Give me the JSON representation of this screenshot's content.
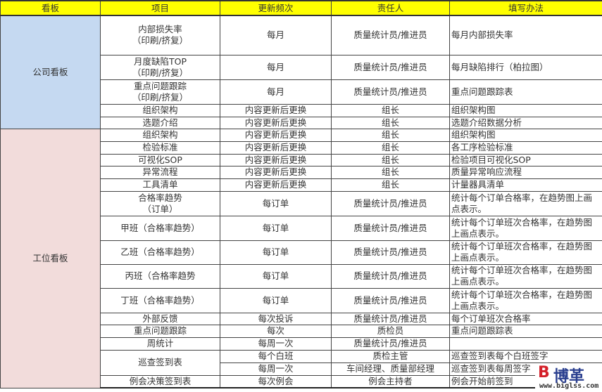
{
  "headers": [
    "看板",
    "项目",
    "更新频次",
    "责任人",
    "填写办法"
  ],
  "colors": {
    "header": "#ffff00",
    "company": "#c5d9f1",
    "station": "#f2dcdb"
  },
  "groups": [
    {
      "label": "公司看板",
      "style": "company",
      "rows": [
        {
          "item": "内部损失率\n（印刷/挤复）",
          "freq": "每月",
          "owner": "质量统计员/推进员",
          "method": "每月内部损失率"
        },
        {
          "item": "月度缺陷TOP\n（印刷/挤复）",
          "freq": "每月",
          "owner": "质量统计员/推进员",
          "method": "每月缺陷排行（柏拉图）"
        },
        {
          "item": "重点问题跟踪\n（印刷/挤复）",
          "freq": "每月",
          "owner": "质量统计员/推进员",
          "method": "重点问题跟踪表"
        },
        {
          "item": "组织架构",
          "freq": "内容更新后更换",
          "owner": "组长",
          "method": "组织架构图"
        },
        {
          "item": "选题介绍",
          "freq": "内容更新后更换",
          "owner": "组长",
          "method": "选题介绍数据分析"
        }
      ]
    },
    {
      "label": "工位看板",
      "style": "station",
      "rows": [
        {
          "item": "组织架构",
          "freq": "内容更新后更换",
          "owner": "组长",
          "method": "组织架构图"
        },
        {
          "item": "检验标准",
          "freq": "内容更新后更换",
          "owner": "组长",
          "method": "各工序检验标准"
        },
        {
          "item": "可视化SOP",
          "freq": "内容更新后更换",
          "owner": "组长",
          "method": "检验项目可视化SOP"
        },
        {
          "item": "异常流程",
          "freq": "内容更新后更换",
          "owner": "组长",
          "method": "质量异常响应流程"
        },
        {
          "item": "工具清单",
          "freq": "内容更新后更换",
          "owner": "组长",
          "method": "计量器具清单"
        },
        {
          "item": "合格率趋势\n（订单）",
          "freq": "每订单",
          "owner": "质量统计员/推进员",
          "method": "统计每个订单合格率，在趋势图上画点表示。"
        },
        {
          "item": "甲班（合格率趋势）",
          "freq": "每订单",
          "owner": "质量统计员/推进员",
          "method": "统计每个订单班次合格率，在趋势图上画点表示。"
        },
        {
          "item": "乙班（合格率趋势）",
          "freq": "每订单",
          "owner": "质量统计员/推进员",
          "method": "统计每个订单班次合格率，在趋势图上画点表示。"
        },
        {
          "item": "丙班（合格率趋势",
          "freq": "每订单",
          "owner": "质量统计员/推进员",
          "method": "统计每个订单班次合格率，在趋势图上画点表示。"
        },
        {
          "item": "丁班（合格率趋势）",
          "freq": "每订单",
          "owner": "质量统计员/推进员",
          "method": "统计每个订单班次合格率，在趋势图上画点表示。"
        },
        {
          "item": "外部反馈",
          "freq": "每次投诉",
          "owner": "质量统计员/推进员",
          "method": "每个订单班次合格率"
        },
        {
          "item": "重点问题跟踪",
          "freq": "每次",
          "owner": "质检员",
          "method": "重点问题跟踪表"
        },
        {
          "item": "周统计",
          "freq": "每周一次",
          "owner": "质量统计员/推进员",
          "method": ""
        },
        {
          "item": "巡查签到表",
          "itemSpan": 2,
          "freq": "每个白班",
          "owner": "质检主管",
          "method": "巡查签到表每个白班签字"
        },
        {
          "freq": "每周一次",
          "owner": "车间经理、质量部经理",
          "method": "巡查签到表每周签字"
        },
        {
          "item": "例会决策签到表",
          "freq": "每次例会",
          "owner": "例会主持者",
          "method": "例会开始前签到"
        }
      ]
    }
  ],
  "logo": {
    "mark": "B",
    "name": "博革",
    "url": "www.biglss.com"
  }
}
